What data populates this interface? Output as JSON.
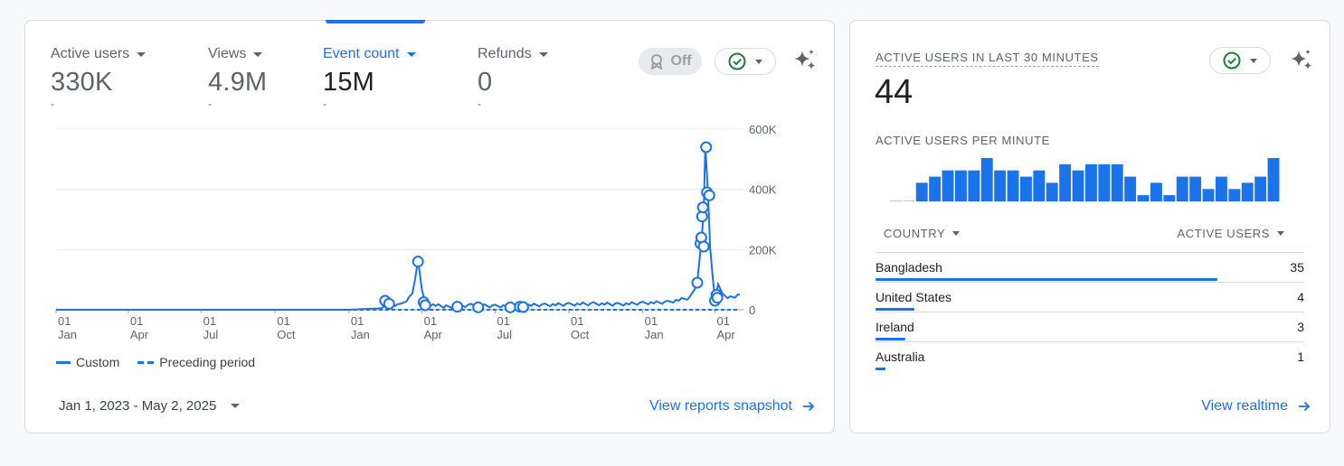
{
  "main": {
    "metrics": [
      {
        "label": "Active users",
        "value": "330K",
        "delta": "-"
      },
      {
        "label": "Views",
        "value": "4.9M",
        "delta": "-"
      },
      {
        "label": "Event count",
        "value": "15M",
        "delta": "-"
      },
      {
        "label": "Refunds",
        "value": "0",
        "delta": "-"
      }
    ],
    "toggle_off_label": "Off",
    "chart_data": {
      "type": "line",
      "y_ticks": [
        "600K",
        "400K",
        "200K",
        "0"
      ],
      "ylim": [
        0,
        600000
      ],
      "x_ticks": [
        {
          "day": "01",
          "month": "Jan"
        },
        {
          "day": "01",
          "month": "Apr"
        },
        {
          "day": "01",
          "month": "Jul"
        },
        {
          "day": "01",
          "month": "Oct"
        },
        {
          "day": "01",
          "month": "Jan"
        },
        {
          "day": "01",
          "month": "Apr"
        },
        {
          "day": "01",
          "month": "Jul"
        },
        {
          "day": "01",
          "month": "Oct"
        },
        {
          "day": "01",
          "month": "Jan"
        },
        {
          "day": "01",
          "month": "Apr"
        }
      ],
      "series": [
        {
          "name": "Custom",
          "style": "solid",
          "points": [
            [
              "2023-01-01",
              0
            ],
            [
              "2024-01-01",
              0
            ],
            [
              "2024-02-10",
              5000
            ],
            [
              "2024-02-20",
              20000
            ],
            [
              "2024-03-05",
              15000
            ],
            [
              "2024-03-20",
              50000
            ],
            [
              "2024-03-27",
              160000
            ],
            [
              "2024-04-01",
              60000
            ],
            [
              "2024-04-05",
              20000
            ],
            [
              "2024-05-01",
              10000
            ],
            [
              "2024-06-01",
              15000
            ],
            [
              "2024-07-01",
              12000
            ],
            [
              "2024-08-01",
              15000
            ],
            [
              "2024-09-01",
              16000
            ],
            [
              "2024-10-01",
              18000
            ],
            [
              "2024-11-01",
              20000
            ],
            [
              "2024-12-01",
              18000
            ],
            [
              "2025-01-01",
              22000
            ],
            [
              "2025-02-01",
              25000
            ],
            [
              "2025-03-01",
              40000
            ],
            [
              "2025-03-10",
              90000
            ],
            [
              "2025-03-15",
              220000
            ],
            [
              "2025-03-18",
              320000
            ],
            [
              "2025-03-20",
              540000
            ],
            [
              "2025-03-23",
              400000
            ],
            [
              "2025-03-26",
              200000
            ],
            [
              "2025-04-01",
              30000
            ],
            [
              "2025-04-05",
              80000
            ],
            [
              "2025-04-10",
              50000
            ],
            [
              "2025-04-20",
              40000
            ],
            [
              "2025-05-02",
              50000
            ]
          ],
          "annotations": [
            [
              "2024-02-15",
              30000
            ],
            [
              "2024-02-20",
              20000
            ],
            [
              "2024-03-27",
              160000
            ],
            [
              "2024-04-03",
              25000
            ],
            [
              "2024-04-05",
              15000
            ],
            [
              "2024-05-15",
              10000
            ],
            [
              "2024-06-10",
              8000
            ],
            [
              "2024-07-20",
              8000
            ],
            [
              "2024-08-01",
              10000
            ],
            [
              "2024-08-05",
              9000
            ],
            [
              "2025-03-10",
              90000
            ],
            [
              "2025-03-14",
              220000
            ],
            [
              "2025-03-15",
              240000
            ],
            [
              "2025-03-16",
              310000
            ],
            [
              "2025-03-17",
              340000
            ],
            [
              "2025-03-18",
              210000
            ],
            [
              "2025-03-21",
              540000
            ],
            [
              "2025-03-22",
              390000
            ],
            [
              "2025-03-25",
              380000
            ],
            [
              "2025-04-01",
              30000
            ],
            [
              "2025-04-03",
              50000
            ],
            [
              "2025-04-04",
              40000
            ]
          ]
        },
        {
          "name": "Preceding period",
          "style": "dashed",
          "points": [
            [
              "2023-01-01",
              0
            ],
            [
              "2025-05-02",
              0
            ]
          ]
        }
      ]
    },
    "legend": [
      "Custom",
      "Preceding period"
    ],
    "date_range": "Jan 1, 2023 - May 2, 2025",
    "view_link": "View reports snapshot"
  },
  "realtime": {
    "title": "ACTIVE USERS IN LAST 30 MINUTES",
    "value": "44",
    "per_minute_label": "ACTIVE USERS PER MINUTE",
    "per_minute": [
      0,
      0,
      3,
      4,
      5,
      5,
      5,
      7,
      5,
      5,
      4,
      5,
      3,
      6,
      5,
      6,
      6,
      6,
      4,
      1,
      3,
      1,
      4,
      4,
      2,
      4,
      2,
      3,
      4,
      7
    ],
    "table": {
      "col_country": "COUNTRY",
      "col_users": "ACTIVE USERS",
      "rows": [
        {
          "country": "Bangladesh",
          "users": "35",
          "share": 1.0
        },
        {
          "country": "United States",
          "users": "4",
          "share": 0.114
        },
        {
          "country": "Ireland",
          "users": "3",
          "share": 0.086
        },
        {
          "country": "Australia",
          "users": "1",
          "share": 0.029
        }
      ]
    },
    "view_link": "View realtime"
  },
  "colors": {
    "accent": "#1a73e8",
    "check": "#188038"
  }
}
